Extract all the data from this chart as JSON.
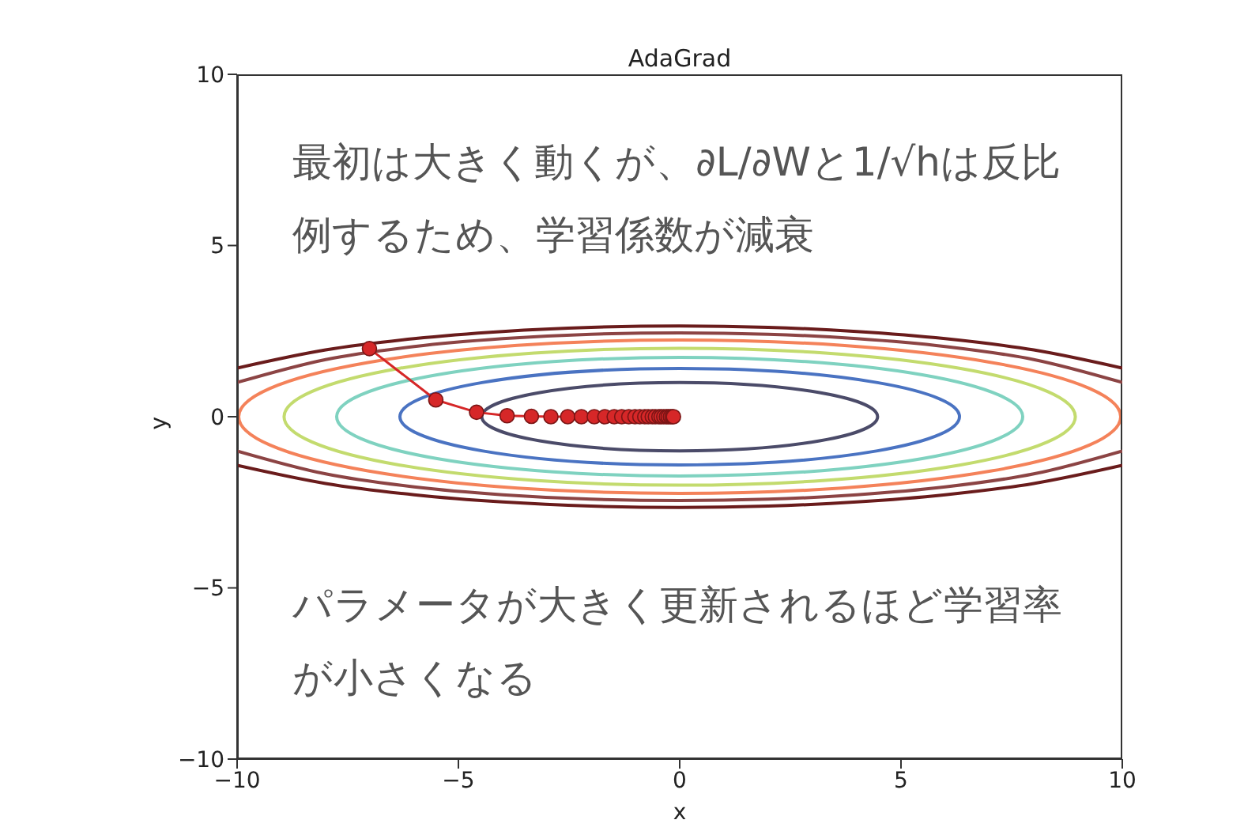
{
  "chart_data": {
    "type": "line",
    "title": "AdaGrad",
    "xlabel": "x",
    "ylabel": "y",
    "xlim": [
      -10,
      10
    ],
    "xticks": [
      -10,
      -5,
      0,
      5,
      10
    ],
    "ylim": [
      -10,
      10
    ],
    "yticks": [
      -10,
      -5,
      0,
      5,
      10
    ],
    "annotations": [
      "最初は大きく動くが、∂L/∂Wと1/√hは反比例するため、学習係数が減衰",
      "パラメータが大きく更新されるほど学習率が小さくなる"
    ],
    "series": [
      {
        "color": "#8c4444",
        "marker": "none",
        "x": [
          -10,
          -8,
          -6,
          -4,
          -2,
          0,
          2,
          4,
          6,
          8,
          10
        ],
        "values": [
          1,
          1.67,
          2.05,
          2.28,
          2.41,
          2.45,
          2.41,
          2.28,
          2.05,
          1.67,
          1
        ]
      },
      {
        "color": "#8c4444",
        "marker": "none",
        "x": [
          -10,
          -8,
          -6,
          -4,
          -2,
          0,
          2,
          4,
          6,
          8,
          10
        ],
        "values": [
          -1,
          -1.67,
          -2.05,
          -2.28,
          -2.41,
          -2.45,
          -2.41,
          -2.28,
          -2.05,
          -1.67,
          -1
        ]
      },
      {
        "color": "#6a1c1c",
        "marker": "none",
        "x": [
          -10,
          -8,
          -6,
          -4,
          -2,
          0,
          2,
          4,
          6,
          8,
          10
        ],
        "values": [
          1.42,
          1.95,
          2.28,
          2.49,
          2.61,
          2.65,
          2.61,
          2.49,
          2.28,
          1.95,
          1.42
        ]
      },
      {
        "color": "#6a1c1c",
        "marker": "none",
        "x": [
          -10,
          -8,
          -6,
          -4,
          -2,
          0,
          2,
          4,
          6,
          8,
          10
        ],
        "values": [
          -1.42,
          -1.95,
          -2.28,
          -2.49,
          -2.61,
          -2.65,
          -2.61,
          -2.49,
          -2.28,
          -1.95,
          -1.42
        ]
      },
      {
        "color": "#d62728",
        "marker": "circle",
        "x": [
          -7.01,
          -5.51,
          -4.59,
          -3.9,
          -3.35,
          -2.91,
          -2.53,
          -2.22,
          -1.93,
          -1.69,
          -1.48,
          -1.31,
          -1.15,
          -1.01,
          -0.9,
          -0.79,
          -0.71,
          -0.62,
          -0.55,
          -0.47,
          -0.42,
          -0.36,
          -0.3,
          -0.26,
          -0.21,
          -0.17,
          -0.14
        ],
        "values": [
          1.99,
          0.49,
          0.13,
          0.03,
          0.01,
          0,
          0,
          0,
          0,
          0,
          0,
          0,
          0,
          0,
          0,
          0,
          0,
          0,
          0,
          0,
          0,
          0,
          0,
          0,
          0,
          0,
          0
        ]
      }
    ]
  }
}
